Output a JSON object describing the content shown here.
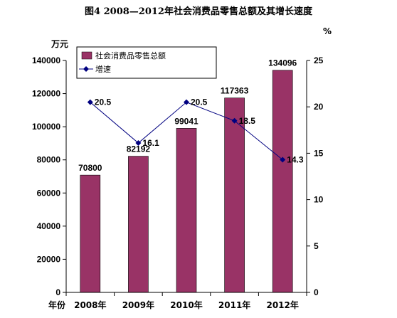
{
  "colors": {
    "bar": "#993366",
    "line": "#000080",
    "marker": "#000080"
  },
  "chart_data": {
    "type": "bar",
    "title": "图4    2008—2012年社会消费品零售总额及其增长速度",
    "y_left_unit": "万元",
    "y_right_unit": "%",
    "x_axis_label": "年份",
    "categories": [
      "2008年",
      "2009年",
      "2010年",
      "2011年",
      "2012年"
    ],
    "ylim_left": [
      0,
      140000
    ],
    "ylim_right": [
      0,
      25
    ],
    "left_ticks": [
      "0",
      "20000",
      "40000",
      "60000",
      "80000",
      "100000",
      "120000",
      "140000"
    ],
    "right_ticks": [
      "0",
      "5",
      "10",
      "15",
      "20",
      "25"
    ],
    "series": [
      {
        "name": "社会消费品零售总额",
        "kind": "bar",
        "axis": "left",
        "values": [
          70800,
          82192,
          99041,
          117363,
          134096
        ],
        "labels": [
          "70800",
          "82192",
          "99041",
          "117363",
          "134096"
        ]
      },
      {
        "name": "增速",
        "kind": "line",
        "axis": "right",
        "marker": "diamond",
        "values": [
          20.5,
          16.1,
          20.5,
          18.5,
          14.3
        ],
        "labels": [
          "20.5",
          "16.1",
          "20.5",
          "18.5",
          "14.3"
        ]
      }
    ],
    "legend_position": "top-left",
    "grid": false
  }
}
